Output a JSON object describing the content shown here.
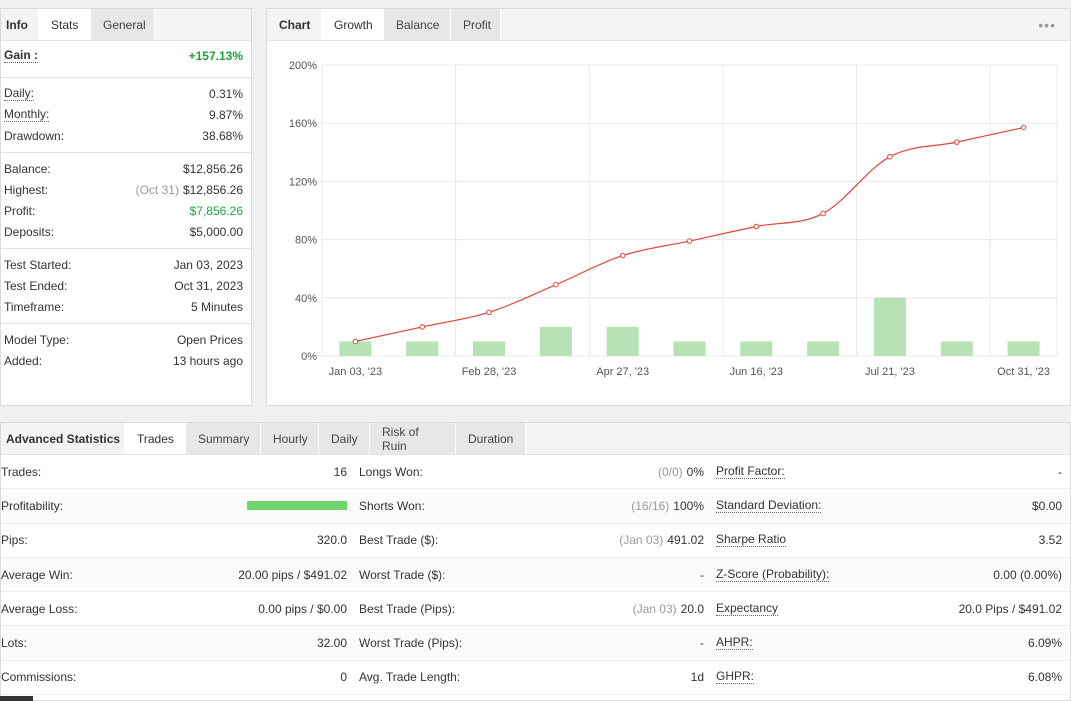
{
  "info": {
    "tabs": [
      "Info",
      "Stats",
      "General"
    ],
    "gain": {
      "label": "Gain :",
      "value": "+157.13%"
    },
    "group1": [
      {
        "label": "Daily:",
        "value": "0.31%"
      },
      {
        "label": "Monthly:",
        "value": "9.87%"
      },
      {
        "label": "Drawdown:",
        "value": "38.68%"
      }
    ],
    "balance": {
      "label": "Balance:",
      "value": "$12,856.26"
    },
    "highest": {
      "label": "Highest:",
      "date": "(Oct 31)",
      "value": "$12,856.26"
    },
    "profit": {
      "label": "Profit:",
      "value": "$7,856.26"
    },
    "deposits": {
      "label": "Deposits:",
      "value": "$5,000.00"
    },
    "group3": [
      {
        "label": "Test Started:",
        "value": "Jan 03, 2023"
      },
      {
        "label": "Test Ended:",
        "value": "Oct 31, 2023"
      },
      {
        "label": "Timeframe:",
        "value": "5 Minutes"
      }
    ],
    "group4": [
      {
        "label": "Model Type:",
        "value": "Open Prices"
      },
      {
        "label": "Added:",
        "value": "13 hours ago"
      }
    ]
  },
  "chart": {
    "tabs": [
      "Chart",
      "Growth",
      "Balance",
      "Profit"
    ],
    "menu_icon": "more-dots-icon",
    "colors": {
      "line": "#e0463a",
      "bar": "#b6e2b6",
      "grid": "#e8e8e8"
    }
  },
  "chart_data": {
    "type": "line",
    "y_ticks": [
      "200%",
      "160%",
      "120%",
      "80%",
      "40%",
      "0%"
    ],
    "ylim": [
      0,
      200
    ],
    "x_tick_labels": [
      "Jan 03, '23",
      "Feb 28, '23",
      "Apr 27, '23",
      "Jun 16, '23",
      "Jul 21, '23",
      "Oct 31, '23"
    ],
    "series": [
      {
        "values": [
          10,
          20,
          30,
          49,
          69,
          79,
          89,
          98,
          137,
          147,
          157
        ]
      },
      {
        "values": [
          10,
          10,
          10,
          20,
          20,
          10,
          10,
          10,
          40,
          10,
          10
        ]
      }
    ]
  },
  "advanced": {
    "title": "Advanced Statistics",
    "tabs": [
      "Trades",
      "Summary",
      "Hourly",
      "Daily",
      "Risk of Ruin",
      "Duration"
    ],
    "col1": [
      {
        "label": "Trades:",
        "value": "16"
      },
      {
        "label": "Profitability:",
        "value": ""
      },
      {
        "label": "Pips:",
        "value": "320.0"
      },
      {
        "label": "Average Win:",
        "value": "20.00 pips / $491.02"
      },
      {
        "label": "Average Loss:",
        "value": "0.00 pips / $0.00"
      },
      {
        "label": "Lots:",
        "value": "32.00"
      },
      {
        "label": "Commissions:",
        "value": "0"
      }
    ],
    "profitability": 1.0,
    "col2": [
      {
        "label": "Longs Won:",
        "muted": "(0/0)",
        "value": "0%"
      },
      {
        "label": "Shorts Won:",
        "muted": "(16/16)",
        "value": "100%"
      },
      {
        "label": "Best Trade ($):",
        "muted": "(Jan 03)",
        "value": "491.02"
      },
      {
        "label": "Worst Trade ($):",
        "muted": "",
        "value": "-"
      },
      {
        "label": "Best Trade (Pips):",
        "muted": "(Jan 03)",
        "value": "20.0"
      },
      {
        "label": "Worst Trade (Pips):",
        "muted": "",
        "value": "-"
      },
      {
        "label": "Avg. Trade Length:",
        "muted": "",
        "value": "1d"
      }
    ],
    "col3": [
      {
        "label": "Profit Factor:",
        "value": "-"
      },
      {
        "label": "Standard Deviation:",
        "value": "$0.00"
      },
      {
        "label": "Sharpe Ratio",
        "value": "3.52"
      },
      {
        "label": "Z-Score (Probability):",
        "value": "0.00 (0.00%)"
      },
      {
        "label": "Expectancy",
        "value": "20.0 Pips / $491.02"
      },
      {
        "label": "AHPR:",
        "value": "6.09%"
      },
      {
        "label": "GHPR:",
        "value": "6.08%"
      }
    ]
  }
}
